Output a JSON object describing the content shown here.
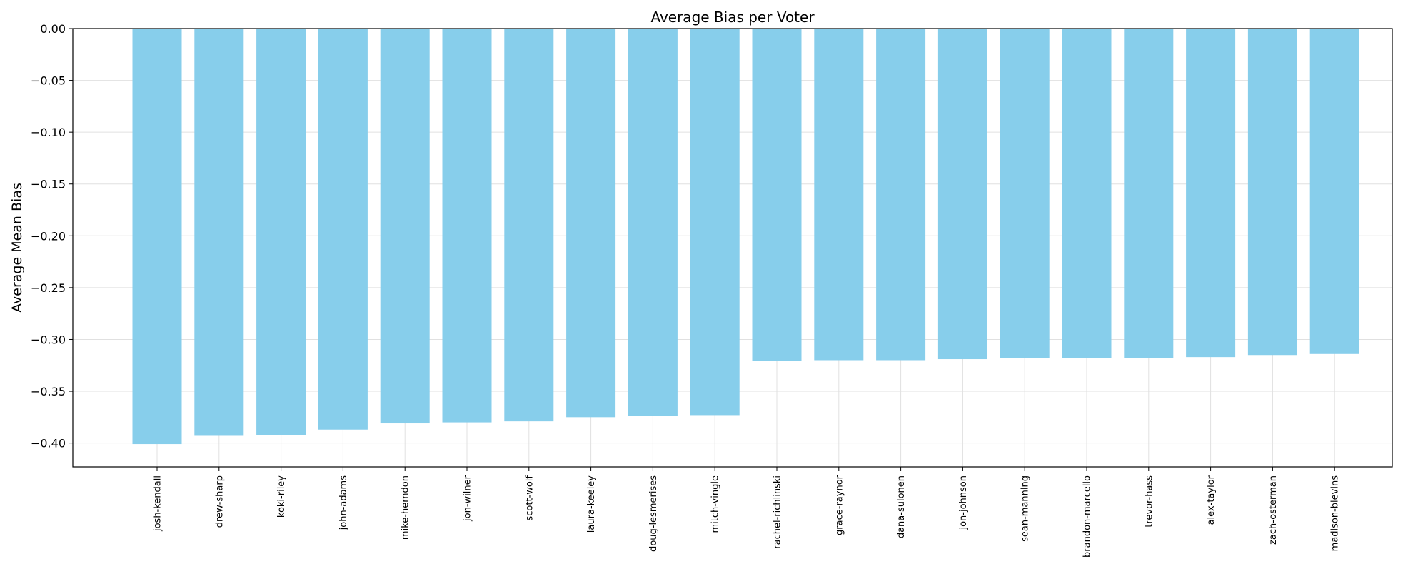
{
  "chart_data": {
    "type": "bar",
    "title": "Average Bias per Voter",
    "xlabel": "",
    "ylabel": "Average Mean Bias",
    "categories": [
      "josh-kendall",
      "drew-sharp",
      "koki-riley",
      "john-adams",
      "mike-herndon",
      "jon-wilner",
      "scott-wolf",
      "laura-keeley",
      "doug-lesmerises",
      "mitch-vingle",
      "rachel-richlinski",
      "grace-raynor",
      "dana-sulonen",
      "jon-johnson",
      "sean-manning",
      "brandon-marcello",
      "trevor-hass",
      "alex-taylor",
      "zach-osterman",
      "madison-blevins"
    ],
    "values": [
      -0.401,
      -0.393,
      -0.392,
      -0.387,
      -0.381,
      -0.38,
      -0.379,
      -0.375,
      -0.374,
      -0.373,
      -0.321,
      -0.32,
      -0.32,
      -0.319,
      -0.318,
      -0.318,
      -0.318,
      -0.317,
      -0.315,
      -0.314
    ],
    "ylim": [
      -0.423,
      0.0
    ],
    "yticks": [
      0.0,
      -0.05,
      -0.1,
      -0.15,
      -0.2,
      -0.25,
      -0.3,
      -0.35,
      -0.4
    ],
    "ytick_labels": [
      "0.00",
      "−0.05",
      "−0.10",
      "−0.15",
      "−0.20",
      "−0.25",
      "−0.30",
      "−0.35",
      "−0.40"
    ],
    "grid": true,
    "colors": {
      "bar": "#87ceeb",
      "grid": "#e0e0e0",
      "axis": "#000000"
    }
  }
}
